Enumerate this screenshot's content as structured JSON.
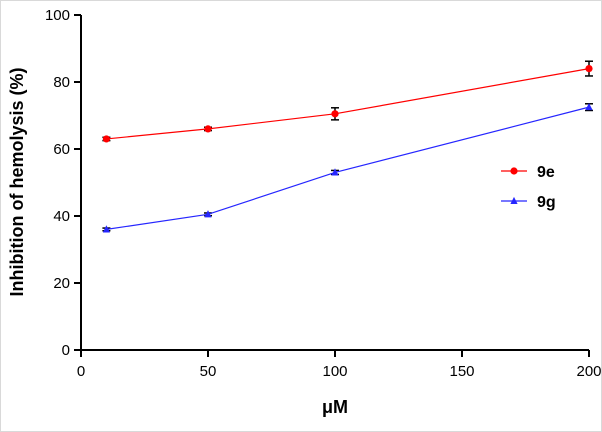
{
  "chart_data": {
    "type": "line",
    "title": "",
    "xlabel": "μM",
    "ylabel": "Inhibition of hemolysis (%)",
    "xlim": [
      0,
      200
    ],
    "ylim": [
      0,
      100
    ],
    "x_ticks": [
      0,
      50,
      100,
      150,
      200
    ],
    "y_ticks": [
      0,
      20,
      40,
      60,
      80,
      100
    ],
    "grid": false,
    "legend_position": "right-middle",
    "axis_color": "#000000",
    "error_bar_color": "#000000",
    "x": [
      10,
      50,
      100,
      200
    ],
    "series": [
      {
        "name": "9e",
        "color": "#ff0000",
        "marker": "circle",
        "values": [
          63,
          66,
          70.5,
          84
        ],
        "errors": [
          0.5,
          0.5,
          1.8,
          2.2
        ]
      },
      {
        "name": "9g",
        "color": "#2626ff",
        "marker": "triangle",
        "values": [
          36,
          40.5,
          53,
          72.5
        ],
        "errors": [
          0.4,
          0.4,
          0.6,
          1.0
        ]
      }
    ]
  }
}
